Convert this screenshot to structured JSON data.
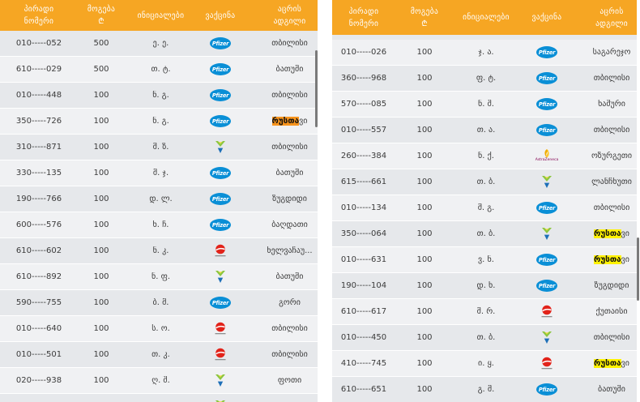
{
  "tables": [
    {
      "headers": [
        "პირადი\nნომერი",
        "მოგება\n₾",
        "ინიციალები",
        "ვაქცინა",
        "აცრის\nადგილი"
      ],
      "highlight_color": "#f7941d",
      "rows": [
        {
          "id": "010-----052",
          "prize": "500",
          "initials": "ე. ე.",
          "vaccine": "pfizer",
          "place": "თბილისი"
        },
        {
          "id": "610-----029",
          "prize": "500",
          "initials": "თ. ტ.",
          "vaccine": "pfizer",
          "place": "ბათუმი"
        },
        {
          "id": "010-----448",
          "prize": "100",
          "initials": "ნ. გ.",
          "vaccine": "pfizer",
          "place": "თბილისი"
        },
        {
          "id": "350-----726",
          "prize": "100",
          "initials": "ნ. გ.",
          "vaccine": "pfizer",
          "place": "რუსთავი",
          "highlight": "რუსთა"
        },
        {
          "id": "310-----871",
          "prize": "100",
          "initials": "მ. ზ.",
          "vaccine": "sinovac",
          "place": "თბილისი"
        },
        {
          "id": "330-----135",
          "prize": "100",
          "initials": "მ. ჯ.",
          "vaccine": "pfizer",
          "place": "ბათუმი"
        },
        {
          "id": "190-----766",
          "prize": "100",
          "initials": "დ. ლ.",
          "vaccine": "pfizer",
          "place": "ზუგდიდი"
        },
        {
          "id": "600-----576",
          "prize": "100",
          "initials": "ხ. ჩ.",
          "vaccine": "pfizer",
          "place": "ბაღდათი"
        },
        {
          "id": "610-----602",
          "prize": "100",
          "initials": "ნ. კ.",
          "vaccine": "sinopharm",
          "place": "ხელვაჩაუ..."
        },
        {
          "id": "610-----892",
          "prize": "100",
          "initials": "ნ. ფ.",
          "vaccine": "sinovac",
          "place": "ბათუმი"
        },
        {
          "id": "590-----755",
          "prize": "100",
          "initials": "ბ. მ.",
          "vaccine": "pfizer",
          "place": "გორი"
        },
        {
          "id": "010-----640",
          "prize": "100",
          "initials": "ს. ო.",
          "vaccine": "sinopharm",
          "place": "თბილისი"
        },
        {
          "id": "010-----501",
          "prize": "100",
          "initials": "თ. კ.",
          "vaccine": "sinopharm",
          "place": "თბილისი"
        },
        {
          "id": "020-----938",
          "prize": "100",
          "initials": "ღ. შ.",
          "vaccine": "sinovac",
          "place": "ფოთი"
        }
      ],
      "partial_row": {
        "vaccine": "sinovac"
      }
    },
    {
      "headers": [
        "პირადი\nნომერი",
        "მოგება\n₾",
        "ინიციალები",
        "ვაქცინა",
        "აცრის\nადგილი"
      ],
      "highlight_color": "#fff200",
      "rows": [
        {
          "id": "010-----026",
          "prize": "100",
          "initials": "ჯ. ა.",
          "vaccine": "pfizer",
          "place": "საგარეჯო"
        },
        {
          "id": "360-----968",
          "prize": "100",
          "initials": "ფ. ტ.",
          "vaccine": "pfizer",
          "place": "თბილისი"
        },
        {
          "id": "570-----085",
          "prize": "100",
          "initials": "ნ. შ.",
          "vaccine": "pfizer",
          "place": "ხაშური"
        },
        {
          "id": "010-----557",
          "prize": "100",
          "initials": "თ. ა.",
          "vaccine": "pfizer",
          "place": "თბილისი"
        },
        {
          "id": "260-----384",
          "prize": "100",
          "initials": "ნ. ქ.",
          "vaccine": "astrazeneca",
          "place": "ოზურგეთი"
        },
        {
          "id": "615-----661",
          "prize": "100",
          "initials": "თ. ბ.",
          "vaccine": "sinovac",
          "place": "ლანჩხუთი"
        },
        {
          "id": "010-----134",
          "prize": "100",
          "initials": "მ. გ.",
          "vaccine": "pfizer",
          "place": "თბილისი"
        },
        {
          "id": "350-----064",
          "prize": "100",
          "initials": "თ. ბ.",
          "vaccine": "sinovac",
          "place": "რუსთავი",
          "highlight": "რუსთა"
        },
        {
          "id": "010-----631",
          "prize": "100",
          "initials": "ვ. ნ.",
          "vaccine": "pfizer",
          "place": "რუსთავი",
          "highlight": "რუსთა"
        },
        {
          "id": "190-----104",
          "prize": "100",
          "initials": "დ. ხ.",
          "vaccine": "pfizer",
          "place": "ზუგდიდი"
        },
        {
          "id": "610-----617",
          "prize": "100",
          "initials": "მ. რ.",
          "vaccine": "sinopharm",
          "place": "ქუთაისი"
        },
        {
          "id": "010-----450",
          "prize": "100",
          "initials": "თ. ბ.",
          "vaccine": "sinovac",
          "place": "თბილისი"
        },
        {
          "id": "410-----745",
          "prize": "100",
          "initials": "ი. ყ.",
          "vaccine": "sinopharm",
          "place": "რუსთავი",
          "highlight": "რუსთა"
        },
        {
          "id": "610-----651",
          "prize": "100",
          "initials": "გ. მ.",
          "vaccine": "pfizer",
          "place": "ბათუმი"
        }
      ]
    }
  ],
  "logos": {
    "pfizer": "Pfizer",
    "astrazeneca": "AstraZeneca"
  },
  "colors": {
    "header_bg": "#f6a623",
    "header_text": "#ffffff",
    "row_odd": "#e6e8eb",
    "row_even": "#f0f1f3",
    "text": "#3b3b3b",
    "pfizer_blue": "#0a8fd6",
    "scrollbar": "#7a7a7a"
  }
}
